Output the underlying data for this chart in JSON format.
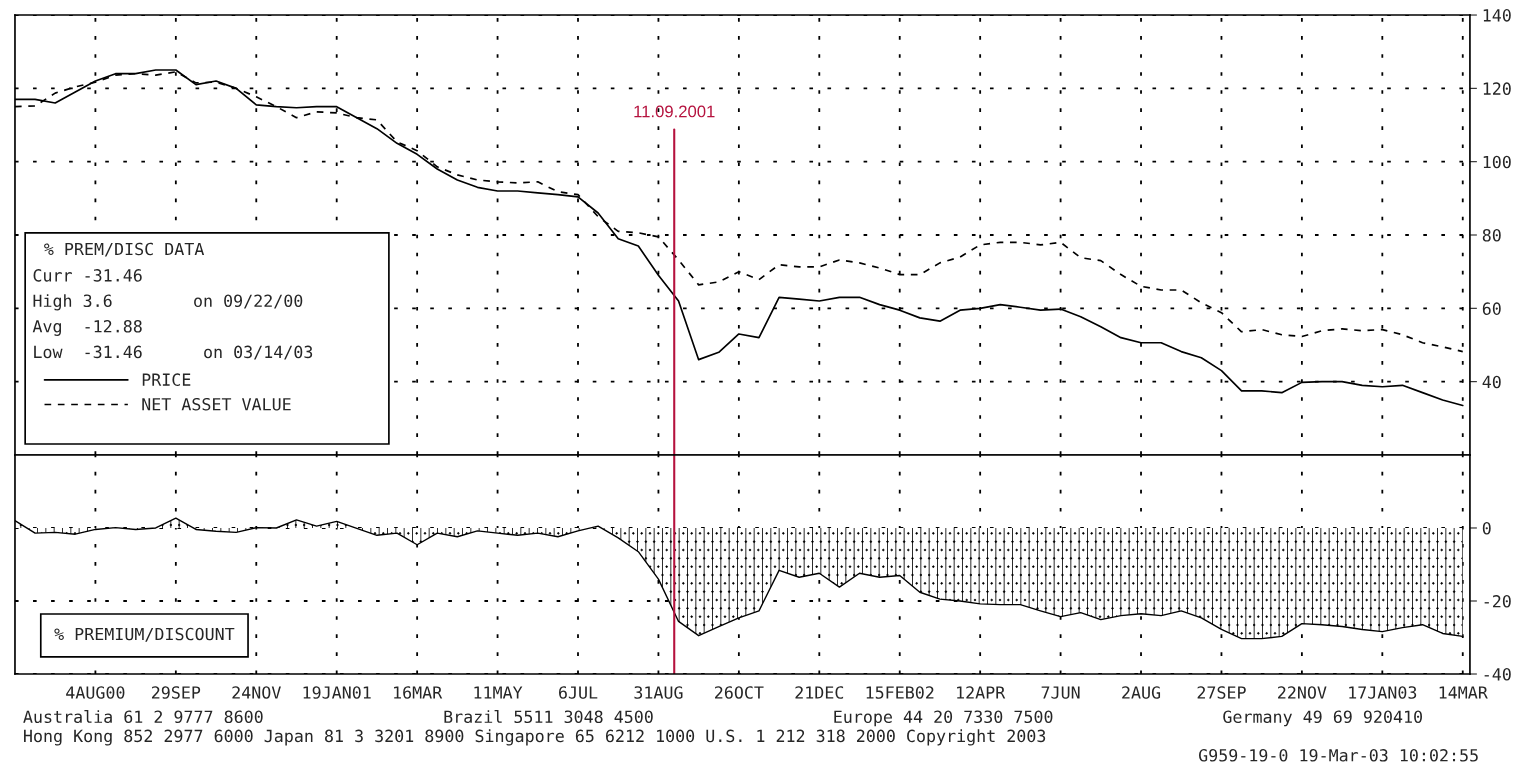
{
  "chart_data": [
    {
      "type": "line",
      "x": [
        "2000-06-09",
        "2000-06-23",
        "2000-07-07",
        "2000-07-21",
        "2000-08-04",
        "2000-08-18",
        "2000-09-01",
        "2000-09-15",
        "2000-09-29",
        "2000-10-13",
        "2000-10-27",
        "2000-11-10",
        "2000-11-24",
        "2000-12-08",
        "2000-12-22",
        "2001-01-05",
        "2001-01-19",
        "2001-02-02",
        "2001-02-16",
        "2001-03-02",
        "2001-03-16",
        "2001-03-30",
        "2001-04-13",
        "2001-04-27",
        "2001-05-11",
        "2001-05-25",
        "2001-06-08",
        "2001-06-22",
        "2001-07-06",
        "2001-07-20",
        "2001-08-03",
        "2001-08-17",
        "2001-08-31",
        "2001-09-14",
        "2001-09-28",
        "2001-10-12",
        "2001-10-26",
        "2001-11-09",
        "2001-11-23",
        "2001-12-07",
        "2001-12-21",
        "2002-01-04",
        "2002-01-18",
        "2002-02-01",
        "2002-02-15",
        "2002-03-01",
        "2002-03-15",
        "2002-03-29",
        "2002-04-12",
        "2002-04-26",
        "2002-05-10",
        "2002-05-24",
        "2002-06-07",
        "2002-06-21",
        "2002-07-05",
        "2002-07-19",
        "2002-08-02",
        "2002-08-16",
        "2002-08-30",
        "2002-09-13",
        "2002-09-27",
        "2002-10-11",
        "2002-10-25",
        "2002-11-08",
        "2002-11-22",
        "2002-12-06",
        "2002-12-20",
        "2003-01-03",
        "2003-01-17",
        "2003-01-31",
        "2003-02-14",
        "2003-02-28",
        "2003-03-14"
      ],
      "series": [
        {
          "name": "PRICE",
          "color": "#000000",
          "line_style": "solid",
          "values": [
            117,
            117,
            116,
            119,
            122,
            124,
            124,
            125,
            125,
            121,
            122,
            120,
            115.5,
            115,
            114.7,
            115,
            115,
            112,
            109,
            105,
            102,
            98,
            95,
            93,
            92,
            92,
            91.5,
            91,
            90.4,
            86,
            79,
            77,
            69,
            62,
            46,
            48,
            53,
            52,
            63,
            62.5,
            62,
            63,
            63,
            61,
            59.5,
            57.4,
            56.5,
            59.5,
            60,
            61,
            60.3,
            59.5,
            59.8,
            57.7,
            55,
            52,
            50.6,
            50.6,
            48.2,
            46.5,
            43,
            37.5,
            37.5,
            37,
            39.8,
            40,
            40,
            39,
            38.6,
            39,
            37,
            35,
            33.5
          ]
        },
        {
          "name": "NET ASSET VALUE",
          "color": "#000000",
          "line_style": "dashed",
          "values": [
            115,
            115.2,
            118.7,
            120.4,
            121.7,
            123.6,
            124,
            123.6,
            124.5,
            121.5,
            121.7,
            120,
            117.7,
            115,
            112,
            113.6,
            113.3,
            112,
            111.4,
            105.4,
            103,
            98.6,
            96.4,
            95,
            94.5,
            94.2,
            94.5,
            91.8,
            91,
            85,
            81,
            80.6,
            79.5,
            73.2,
            66.4,
            67.2,
            70,
            67.8,
            71.9,
            71.3,
            71.3,
            73.2,
            72.4,
            71,
            69.2,
            69.2,
            72.4,
            74,
            77.3,
            78,
            78,
            77.3,
            78,
            73.8,
            73,
            69.2,
            66,
            65,
            65,
            61.5,
            58.8,
            53.6,
            54.2,
            52.8,
            52.3,
            53.9,
            54.4,
            53.9,
            54.2,
            52.8,
            50.6,
            49.5,
            48.2
          ]
        }
      ],
      "xlim": [
        "2000-06-09",
        "2003-03-19"
      ],
      "xticks": [
        {
          "value": "2000-08-04",
          "label": null
        },
        {
          "value": "2000-09-29",
          "label": null
        },
        {
          "value": "2000-11-24",
          "label": null
        },
        {
          "value": "2001-01-19",
          "label": null
        },
        {
          "value": "2001-03-16",
          "label": null
        },
        {
          "value": "2001-05-11",
          "label": null
        },
        {
          "value": "2001-07-06",
          "label": null
        },
        {
          "value": "2001-08-31",
          "label": null
        },
        {
          "value": "2001-10-26",
          "label": null
        },
        {
          "value": "2001-12-21",
          "label": null
        },
        {
          "value": "2002-02-15",
          "label": null
        },
        {
          "value": "2002-04-12",
          "label": null
        },
        {
          "value": "2002-06-07",
          "label": null
        },
        {
          "value": "2002-08-02",
          "label": null
        },
        {
          "value": "2002-09-27",
          "label": null
        },
        {
          "value": "2002-11-22",
          "label": null
        },
        {
          "value": "2003-01-17",
          "label": null
        },
        {
          "value": "2003-03-14",
          "label": null
        }
      ],
      "ylim": [
        20,
        140
      ],
      "yticks": [
        40,
        60,
        80,
        100,
        120,
        140
      ],
      "tick_labels": "y",
      "grid": true,
      "legend": "left",
      "legend_title": "% PREM/DISC DATA",
      "annotations": [
        "Curr -31.46",
        "High 3.6        on 09/22/00",
        "Avg  -12.88",
        "Low  -31.46      on 03/14/03"
      ],
      "ref_lines": [
        {
          "axis": "x",
          "value": "2001-09-11",
          "label": "11.09.2001",
          "color": "#b5123e"
        }
      ]
    },
    {
      "type": "area",
      "x": [
        "2000-06-09",
        "2000-06-23",
        "2000-07-07",
        "2000-07-21",
        "2000-08-04",
        "2000-08-18",
        "2000-09-01",
        "2000-09-15",
        "2000-09-29",
        "2000-10-13",
        "2000-10-27",
        "2000-11-10",
        "2000-11-24",
        "2000-12-08",
        "2000-12-22",
        "2001-01-05",
        "2001-01-19",
        "2001-02-02",
        "2001-02-16",
        "2001-03-02",
        "2001-03-16",
        "2001-03-30",
        "2001-04-13",
        "2001-04-27",
        "2001-05-11",
        "2001-05-25",
        "2001-06-08",
        "2001-06-22",
        "2001-07-06",
        "2001-07-20",
        "2001-08-03",
        "2001-08-17",
        "2001-08-31",
        "2001-09-14",
        "2001-09-28",
        "2001-10-12",
        "2001-10-26",
        "2001-11-09",
        "2001-11-23",
        "2001-12-07",
        "2001-12-21",
        "2002-01-04",
        "2002-01-18",
        "2002-02-01",
        "2002-02-15",
        "2002-03-01",
        "2002-03-15",
        "2002-03-29",
        "2002-04-12",
        "2002-04-26",
        "2002-05-10",
        "2002-05-24",
        "2002-06-07",
        "2002-06-21",
        "2002-07-05",
        "2002-07-19",
        "2002-08-02",
        "2002-08-16",
        "2002-08-30",
        "2002-09-13",
        "2002-09-27",
        "2002-10-11",
        "2002-10-25",
        "2002-11-08",
        "2002-11-22",
        "2002-12-06",
        "2002-12-20",
        "2003-01-03",
        "2003-01-17",
        "2003-01-31",
        "2003-02-14",
        "2003-02-28",
        "2003-03-14"
      ],
      "series": [
        {
          "name": "% PREMIUM/DISCOUNT",
          "color": "#000000",
          "values": [
            2,
            -1.4,
            -1.2,
            -1.7,
            -0.4,
            0.1,
            -0.4,
            0,
            2.7,
            -0.4,
            -0.9,
            -1.2,
            0.1,
            0,
            2.2,
            0.5,
            1.8,
            -0.1,
            -2,
            -1.4,
            -4.6,
            -1.4,
            -2.4,
            -0.8,
            -1.4,
            -2,
            -1.4,
            -2.4,
            -0.8,
            0.5,
            -2.7,
            -6.5,
            -14,
            -25.6,
            -29.5,
            -27,
            -24.6,
            -22.7,
            -11.6,
            -13.5,
            -12.4,
            -16.2,
            -12.4,
            -13.5,
            -13,
            -17.6,
            -19.5,
            -20,
            -20.8,
            -21,
            -21,
            -22.7,
            -24.3,
            -23.2,
            -25.1,
            -24,
            -23.5,
            -24,
            -22.7,
            -24.6,
            -27.8,
            -30.3,
            -30.3,
            -29.7,
            -26.2,
            -26.5,
            -27,
            -27.8,
            -28.4,
            -27.3,
            -26.5,
            -28.9,
            -29.7
          ]
        }
      ],
      "xlim": [
        "2000-06-09",
        "2003-03-19"
      ],
      "xticks": [
        {
          "value": "2000-08-04",
          "label": "4AUG00"
        },
        {
          "value": "2000-09-29",
          "label": "29SEP"
        },
        {
          "value": "2000-11-24",
          "label": "24NOV"
        },
        {
          "value": "2001-01-19",
          "label": "19JAN01"
        },
        {
          "value": "2001-03-16",
          "label": "16MAR"
        },
        {
          "value": "2001-05-11",
          "label": "11MAY"
        },
        {
          "value": "2001-07-06",
          "label": "6JUL"
        },
        {
          "value": "2001-08-31",
          "label": "31AUG"
        },
        {
          "value": "2001-10-26",
          "label": "26OCT"
        },
        {
          "value": "2001-12-21",
          "label": "21DEC"
        },
        {
          "value": "2002-02-15",
          "label": "15FEB02"
        },
        {
          "value": "2002-04-12",
          "label": "12APR"
        },
        {
          "value": "2002-06-07",
          "label": "7JUN"
        },
        {
          "value": "2002-08-02",
          "label": "2AUG"
        },
        {
          "value": "2002-09-27",
          "label": "27SEP"
        },
        {
          "value": "2002-11-22",
          "label": "22NOV"
        },
        {
          "value": "2003-01-17",
          "label": "17JAN03"
        },
        {
          "value": "2003-03-14",
          "label": "14MAR"
        }
      ],
      "ylim": [
        -40,
        20
      ],
      "yticks": [
        -40,
        -20,
        0
      ],
      "grid": true,
      "legend": "bottom left",
      "ref_lines": [
        {
          "axis": "x",
          "value": "2001-09-11",
          "color": "#b5123e"
        }
      ],
      "annotations": [
        "Australia 61 2 9777 8600",
        "Brazil 5511 3048 4500",
        "Europe 44 20 7330 7500",
        "Germany 49 69 920410",
        "Hong Kong 852 2977 6000 Japan 81 3 3201 8900 Singapore 65 6212 1000 U.S. 1 212 318 2000 Copyright 2003",
        "G959-19-0 19-Mar-03 10:02:55"
      ]
    }
  ]
}
